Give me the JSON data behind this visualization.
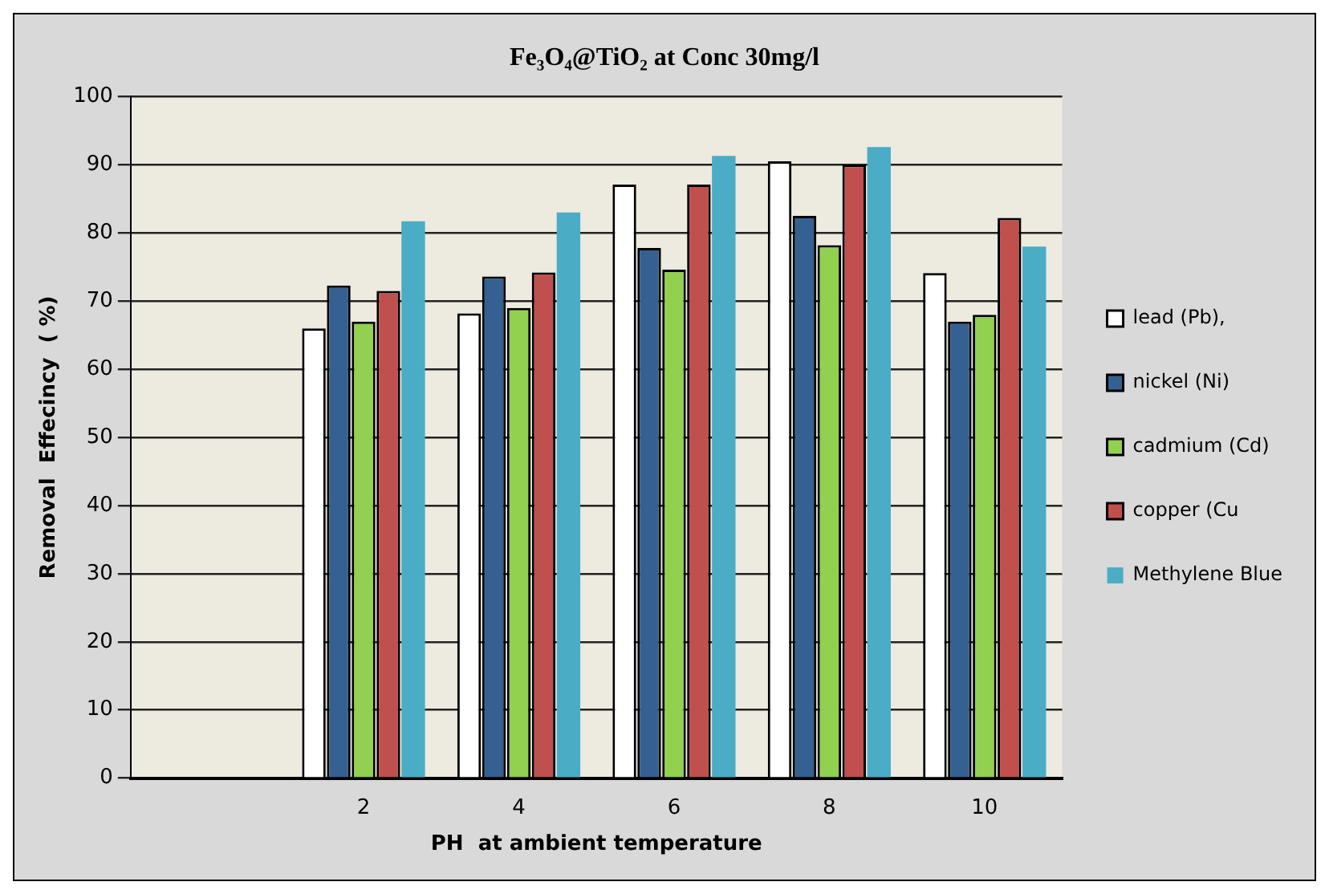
{
  "chart_data": {
    "type": "bar",
    "title": "Fe₃O₄@TiO₂ at Conc 30mg/l",
    "xlabel": "PH  at ambient temperature",
    "ylabel": "Removal  Effecincy  ( %)",
    "categories": [
      null,
      "2",
      "4",
      "6",
      "8",
      "10"
    ],
    "series": [
      {
        "name": "lead (Pb),",
        "color": "#ffffff",
        "values": [
          null,
          66,
          68.2,
          87.1,
          90.5,
          74.1
        ]
      },
      {
        "name": "nickel (Ni)",
        "color": "#356092",
        "values": [
          null,
          72.3,
          73.6,
          77.8,
          82.5,
          67
        ]
      },
      {
        "name": "cadmium (Cd)",
        "color": "#92d050",
        "values": [
          null,
          67,
          69,
          74.6,
          78.2,
          68
        ]
      },
      {
        "name": "copper (Cu",
        "color": "#c0504d",
        "values": [
          null,
          71.5,
          74.2,
          87.1,
          90,
          82.2
        ]
      },
      {
        "name": "Methylene Blue",
        "color": "#4bacc6",
        "values": [
          null,
          81.7,
          83,
          91.3,
          92.6,
          78
        ]
      }
    ],
    "ylim": [
      0,
      100
    ],
    "yticks": [
      0,
      10,
      20,
      30,
      40,
      50,
      60,
      70,
      80,
      90,
      100
    ],
    "grid": "y",
    "legend": "right"
  }
}
